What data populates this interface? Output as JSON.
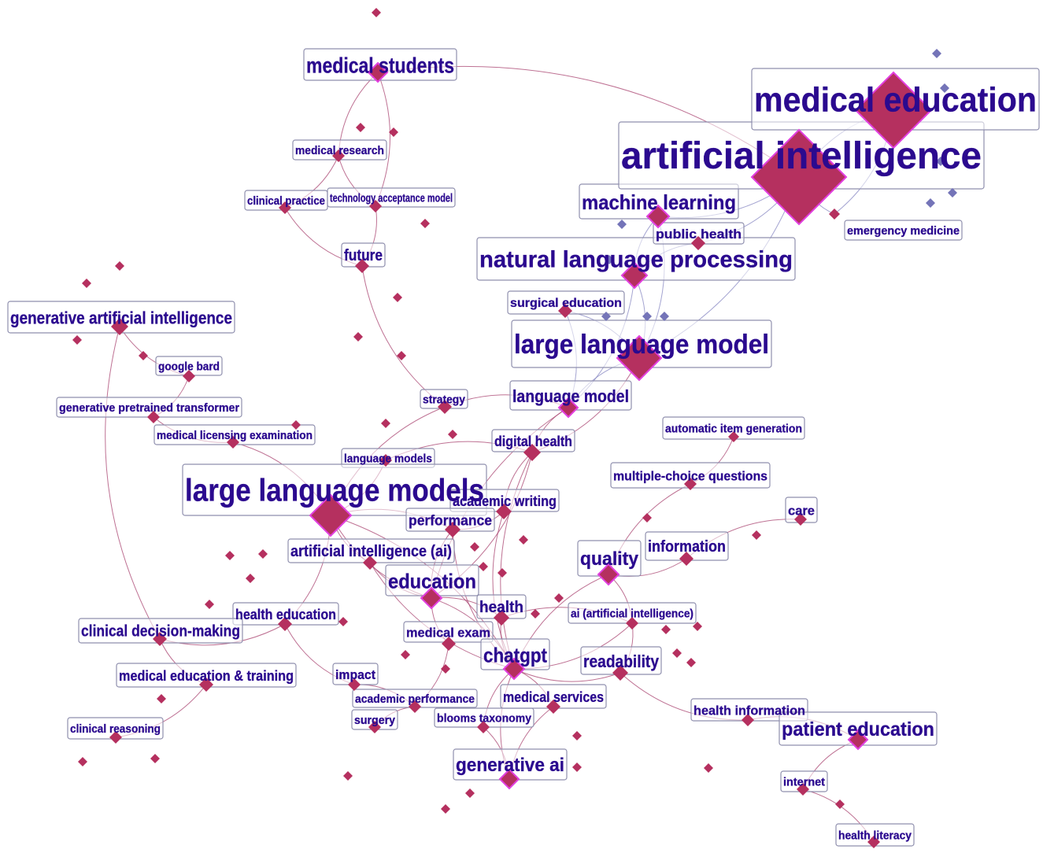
{
  "nodes": [
    {
      "label": "medical students"
    },
    {
      "label": "medical research"
    },
    {
      "label": "clinical practice"
    },
    {
      "label": "technology acceptance model"
    },
    {
      "label": "future"
    },
    {
      "label": "generative artificial intelligence"
    },
    {
      "label": "google bard"
    },
    {
      "label": "generative pretrained transformer"
    },
    {
      "label": "medical licensing examination"
    },
    {
      "label": "language models"
    },
    {
      "label": "large language models"
    },
    {
      "label": "artificial intelligence (ai)"
    },
    {
      "label": "strategy"
    },
    {
      "label": "language model"
    },
    {
      "label": "digital health"
    },
    {
      "label": "academic writing"
    },
    {
      "label": "performance"
    },
    {
      "label": "education"
    },
    {
      "label": "health"
    },
    {
      "label": "medical exam"
    },
    {
      "label": "chatgpt"
    },
    {
      "label": "health education"
    },
    {
      "label": "clinical decision-making"
    },
    {
      "label": "medical education & training"
    },
    {
      "label": "clinical reasoning"
    },
    {
      "label": "impact"
    },
    {
      "label": "academic performance"
    },
    {
      "label": "surgery"
    },
    {
      "label": "blooms taxonomy"
    },
    {
      "label": "medical services"
    },
    {
      "label": "generative ai"
    },
    {
      "label": "surgical education"
    },
    {
      "label": "large language model"
    },
    {
      "label": "natural language processing"
    },
    {
      "label": "machine learning"
    },
    {
      "label": "public health"
    },
    {
      "label": "artificial intelligence"
    },
    {
      "label": "medical education"
    },
    {
      "label": "emergency medicine"
    },
    {
      "label": "automatic item generation"
    },
    {
      "label": "multiple-choice questions"
    },
    {
      "label": "care"
    },
    {
      "label": "information"
    },
    {
      "label": "quality"
    },
    {
      "label": "ai (artificial intelligence)"
    },
    {
      "label": "readability"
    },
    {
      "label": "health information"
    },
    {
      "label": "patient education"
    },
    {
      "label": "internet"
    },
    {
      "label": "health literacy"
    }
  ]
}
